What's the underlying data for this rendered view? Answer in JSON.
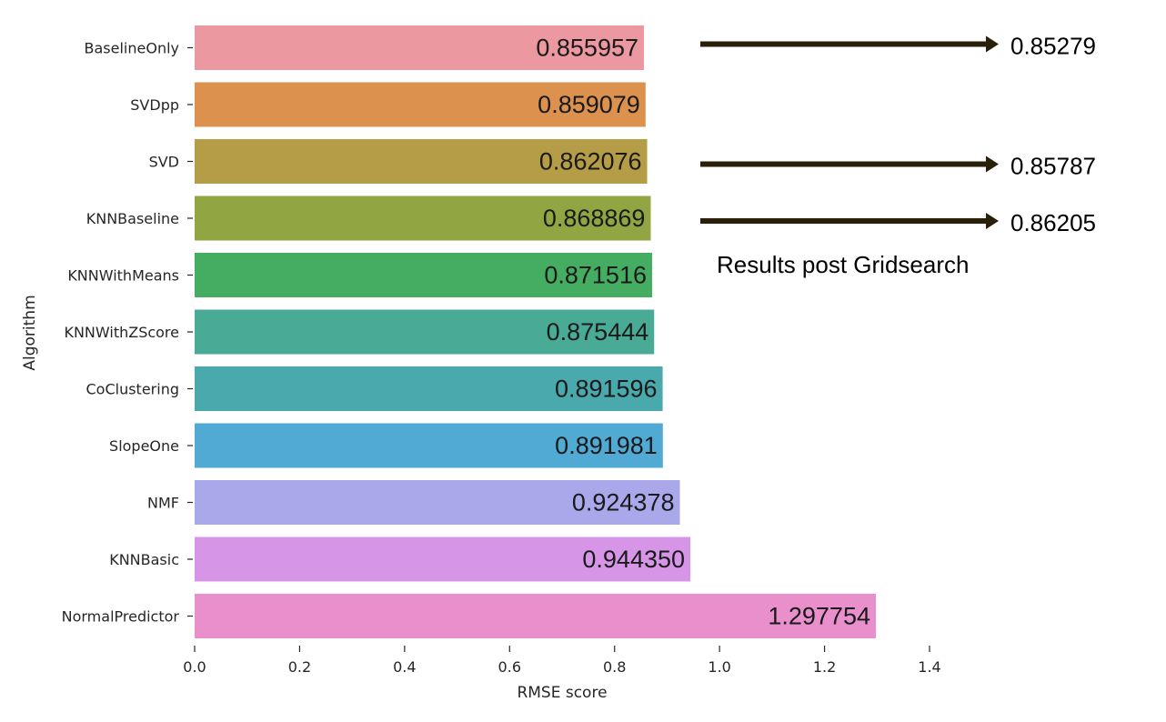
{
  "chart_data": {
    "type": "bar",
    "orientation": "horizontal",
    "title": "",
    "xlabel": "RMSE score",
    "ylabel": "Algorithm",
    "xlim": [
      0,
      1.4
    ],
    "xticks": [
      "0.0",
      "0.2",
      "0.4",
      "0.6",
      "0.8",
      "1.0",
      "1.2",
      "1.4"
    ],
    "grid": false,
    "categories": [
      "BaselineOnly",
      "SVDpp",
      "SVD",
      "KNNBaseline",
      "KNNWithMeans",
      "KNNWithZScore",
      "CoClustering",
      "SlopeOne",
      "NMF",
      "KNNBasic",
      "NormalPredictor"
    ],
    "values": [
      0.855957,
      0.859079,
      0.862076,
      0.868869,
      0.871516,
      0.875444,
      0.891596,
      0.891981,
      0.924378,
      0.94435,
      1.297754
    ],
    "value_labels": [
      "0.855957",
      "0.859079",
      "0.862076",
      "0.868869",
      "0.871516",
      "0.875444",
      "0.891596",
      "0.891981",
      "0.924378",
      "0.944350",
      "1.297754"
    ],
    "colors": [
      "#eb98a0",
      "#dc914f",
      "#b59d48",
      "#92a543",
      "#45ad62",
      "#49ab95",
      "#4aa9ad",
      "#50aad3",
      "#a8a8eb",
      "#d795e8",
      "#e98fcc"
    ],
    "annotations": {
      "arrow_color": "#2a1f08",
      "post_gridsearch": [
        {
          "category": "BaselineOnly",
          "value": "0.85279"
        },
        {
          "category": "SVD",
          "value": "0.85787"
        },
        {
          "category": "KNNBaseline",
          "value": "0.86205"
        }
      ],
      "note": "Results post Gridsearch"
    }
  }
}
